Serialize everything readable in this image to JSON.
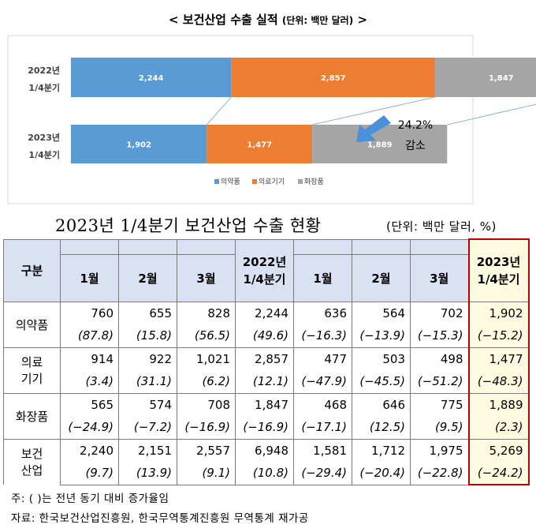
{
  "chart_data": {
    "type": "bar",
    "title": "< 보건산업 수출 실적",
    "unit": "(단위: 백만 달러)",
    "title_end": ">",
    "orientation": "horizontal",
    "stacked": true,
    "categories": [
      [
        "2022년",
        "1/4분기"
      ],
      [
        "2023년",
        "1/4분기"
      ]
    ],
    "series": [
      {
        "name": "의약품",
        "values": [
          2244,
          1902
        ],
        "labels": [
          "2,244",
          "1,902"
        ],
        "color": "#5b9bd5"
      },
      {
        "name": "의료기기",
        "values": [
          2857,
          1477
        ],
        "labels": [
          "2,857",
          "1,477"
        ],
        "color": "#ed7d31"
      },
      {
        "name": "화장품",
        "values": [
          1847,
          1889
        ],
        "labels": [
          "1,847",
          "1,889"
        ],
        "color": "#a5a5a5"
      }
    ],
    "annotation": {
      "lines": [
        "24.2%",
        "감소"
      ],
      "arrow_color": "#4a90d9"
    },
    "legend_position": "bottom",
    "grid": false
  },
  "table": {
    "title": "2023년 1/4분기 보건산업 수출 현황",
    "unit": "(단위: 백만 달러, %)",
    "header": {
      "category": "구분",
      "cols": [
        "1월",
        "2월",
        "3월",
        "2022년\n1/4분기",
        "1월",
        "2월",
        "3월",
        "2023년\n1/4분기"
      ]
    },
    "rows": [
      {
        "label": "의약품",
        "values": [
          "760",
          "655",
          "828",
          "2,244",
          "636",
          "564",
          "702",
          "1,902"
        ],
        "rates": [
          "(87.8)",
          "(15.8)",
          "(56.5)",
          "(49.6)",
          "(−16.3)",
          "(−13.9)",
          "(−15.3)",
          "(−15.2)"
        ]
      },
      {
        "label": "의료\n기기",
        "values": [
          "914",
          "922",
          "1,021",
          "2,857",
          "477",
          "503",
          "498",
          "1,477"
        ],
        "rates": [
          "(3.4)",
          "(31.1)",
          "(6.2)",
          "(12.1)",
          "(−47.9)",
          "(−45.5)",
          "(−51.2)",
          "(−48.3)"
        ]
      },
      {
        "label": "화장품",
        "values": [
          "565",
          "574",
          "708",
          "1,847",
          "468",
          "646",
          "775",
          "1,889"
        ],
        "rates": [
          "(−24.9)",
          "(−7.2)",
          "(−16.9)",
          "(−16.9)",
          "(−17.1)",
          "(12.5)",
          "(9.5)",
          "(2.3)"
        ]
      },
      {
        "label": "보건\n산업",
        "values": [
          "2,240",
          "2,151",
          "2,557",
          "6,948",
          "1,581",
          "1,712",
          "1,975",
          "5,269"
        ],
        "rates": [
          "(9.7)",
          "(13.9)",
          "(9.1)",
          "(10.8)",
          "(−29.4)",
          "(−20.4)",
          "(−22.8)",
          "(−24.2)"
        ]
      }
    ],
    "highlight_color": "#c00000"
  },
  "notes": {
    "note": "주: ( )는 전년 동기 대비 증가율임",
    "source": "자료: 한국보건산업진흥원, 한국무역통계진흥원 무역통계 재가공"
  }
}
